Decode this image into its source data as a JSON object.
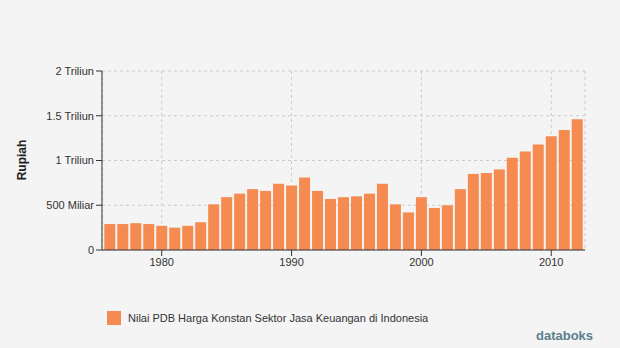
{
  "chart_data": {
    "type": "bar",
    "y_label": "Rupiah",
    "series": [
      {
        "name": "Nilai PDB Harga Konstan Sektor Jasa Keuangan di Indonesia",
        "color": "#f58b51",
        "values": [
          290000000000,
          290000000000,
          300000000000,
          290000000000,
          270000000000,
          250000000000,
          270000000000,
          310000000000,
          510000000000,
          590000000000,
          630000000000,
          680000000000,
          660000000000,
          740000000000,
          720000000000,
          810000000000,
          660000000000,
          570000000000,
          590000000000,
          600000000000,
          630000000000,
          740000000000,
          510000000000,
          420000000000,
          590000000000,
          470000000000,
          500000000000,
          680000000000,
          850000000000,
          860000000000,
          900000000000,
          1030000000000,
          1100000000000,
          1180000000000,
          1270000000000,
          1340000000000,
          1460000000000
        ]
      }
    ],
    "x": [
      1976,
      1977,
      1978,
      1979,
      1980,
      1981,
      1982,
      1983,
      1984,
      1985,
      1986,
      1987,
      1988,
      1989,
      1990,
      1991,
      1992,
      1993,
      1994,
      1995,
      1996,
      1997,
      1998,
      1999,
      2000,
      2001,
      2002,
      2003,
      2004,
      2005,
      2006,
      2007,
      2008,
      2009,
      2010,
      2011,
      2012
    ],
    "xlim": [
      1975.4,
      2012.6
    ],
    "xticks": [
      1980,
      1990,
      2000,
      2010
    ],
    "ylim": [
      0,
      2000000000000
    ],
    "yticks": [
      0,
      {
        "value": 500000000000,
        "label": "500 Miliar"
      },
      {
        "value": 1000000000000,
        "label": "1 Triliun"
      },
      {
        "value": 1500000000000,
        "label": "1.5 Triliun"
      },
      {
        "value": 2000000000000,
        "label": "2 Triliun"
      }
    ],
    "grid": true,
    "annotations": [
      "databoks"
    ]
  }
}
